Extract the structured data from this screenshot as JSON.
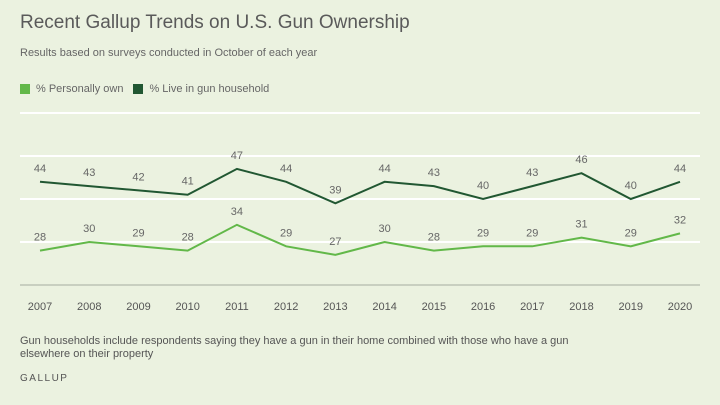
{
  "title": "Recent Gallup Trends on U.S. Gun Ownership",
  "subtitle": "Results based on surveys conducted in October of each year",
  "note": "Gun households include respondents saying they have a gun in their home combined with those who have a gun elsewhere on their property",
  "brand": "GALLUP",
  "chart_data": {
    "type": "line",
    "title": "Recent Gallup Trends on U.S. Gun Ownership",
    "x": [
      "2007",
      "2008",
      "2009",
      "2010",
      "2011",
      "2012",
      "2013",
      "2014",
      "2015",
      "2016",
      "2017",
      "2018",
      "2019",
      "2020"
    ],
    "ylim": [
      20,
      60
    ],
    "grid": true,
    "legend": "top-left",
    "series": [
      {
        "name": "% Personally own",
        "color": "#62b849",
        "values": [
          28,
          30,
          29,
          28,
          34,
          29,
          27,
          30,
          28,
          29,
          29,
          31,
          29,
          32
        ]
      },
      {
        "name": "% Live in gun household",
        "color": "#215732",
        "values": [
          44,
          43,
          42,
          41,
          47,
          44,
          39,
          44,
          43,
          40,
          43,
          46,
          40,
          44
        ]
      }
    ]
  }
}
